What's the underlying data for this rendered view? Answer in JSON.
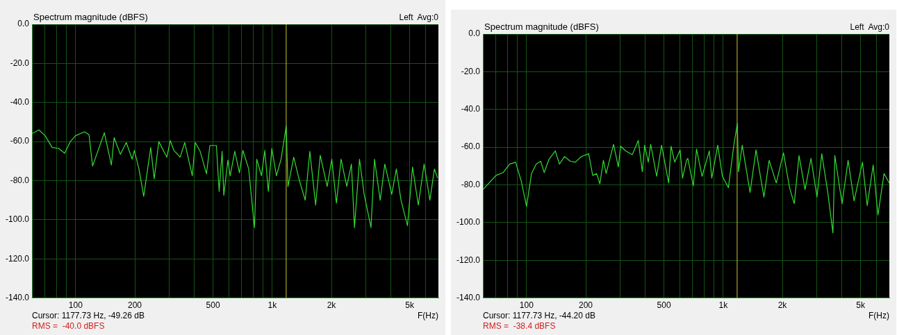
{
  "chart_data": [
    {
      "type": "line",
      "title": "Spectrum magnitude (dBFS)",
      "subtitle": "Left  Avg:0",
      "xlabel": "F(Hz)",
      "annotations": [
        "Cursor: 1177.73 Hz, -49.26 dB",
        "RMS =  -40.0 dBFS"
      ],
      "log": "x",
      "grid": true,
      "marker": "none",
      "xlim": [
        60,
        7000
      ],
      "xticks": [
        {
          "value": 70,
          "label": null
        },
        {
          "value": 80,
          "label": null
        },
        {
          "value": 90,
          "label": null
        },
        100,
        200,
        {
          "value": 300,
          "label": null
        },
        {
          "value": 400,
          "label": null
        },
        500,
        {
          "value": 600,
          "label": null
        },
        {
          "value": 700,
          "label": null
        },
        {
          "value": 800,
          "label": null
        },
        {
          "value": 900,
          "label": null
        },
        {
          "value": 1000,
          "label": "1k"
        },
        {
          "value": 2000,
          "label": "2k"
        },
        {
          "value": 3000,
          "label": null
        },
        {
          "value": 4000,
          "label": null
        },
        {
          "value": 5000,
          "label": "5k"
        },
        {
          "value": 6000,
          "label": null
        }
      ],
      "ylim": [
        -140,
        0
      ],
      "yticks": [
        {
          "value": 0,
          "label": "0.0"
        },
        {
          "value": -20,
          "label": "-20.0"
        },
        {
          "value": -40,
          "label": "-40.0"
        },
        {
          "value": -60,
          "label": "-60.0"
        },
        {
          "value": -80,
          "label": "-80.0"
        },
        {
          "value": -100,
          "label": "-100.0"
        },
        {
          "value": -120,
          "label": "-120.0"
        },
        {
          "value": -140,
          "label": "-140.0"
        }
      ],
      "ref_lines": [
        {
          "axis": "x",
          "value": 1177.73,
          "color": "#c8c832"
        }
      ],
      "series": [
        {
          "color": "#33dd33",
          "x": [
            60,
            65,
            70,
            76,
            82,
            88,
            94,
            100,
            111,
            117,
            122,
            140,
            152,
            157,
            169,
            181,
            194,
            199,
            210,
            222,
            241,
            251,
            265,
            291,
            303,
            316,
            340,
            359,
            392,
            406,
            430,
            463,
            482,
            520,
            537,
            556,
            567,
            595,
            611,
            645,
            681,
            709,
            759,
            812,
            834,
            881,
            917,
            955,
            995,
            1050,
            1109,
            1178,
            1202,
            1286,
            1375,
            1471,
            1553,
            1662,
            1754,
            1902,
            2008,
            2120,
            2238,
            2394,
            2527,
            2619,
            2778,
            2933,
            3179,
            3311,
            3540,
            3737,
            4053,
            4277,
            4516,
            4873,
            5170,
            5530,
            5920,
            6334,
            6680,
            6925
          ],
          "values": [
            -56,
            -54,
            -57,
            -63,
            -63.5,
            -66,
            -60,
            -57,
            -55,
            -56.5,
            -72.5,
            -55.5,
            -72,
            -58,
            -66.5,
            -60.5,
            -69,
            -64.5,
            -74,
            -88,
            -63,
            -79,
            -60,
            -68,
            -59.5,
            -64.5,
            -68,
            -60.5,
            -77.5,
            -60.5,
            -65,
            -76.5,
            -62,
            -62,
            -85.5,
            -65,
            -87.5,
            -69.5,
            -77.5,
            -65,
            -76,
            -64.5,
            -74,
            -104,
            -69,
            -77.5,
            -64.5,
            -85.5,
            -63.5,
            -77.5,
            -69,
            -52,
            -83,
            -68,
            -80,
            -90,
            -65,
            -92.5,
            -67,
            -83,
            -69,
            -91.5,
            -69,
            -83,
            -71.5,
            -104,
            -69,
            -87,
            -104,
            -69,
            -90,
            -71.5,
            -87,
            -74,
            -90,
            -103,
            -73,
            -92.5,
            -71.5,
            -90,
            -74,
            -78.5
          ]
        }
      ]
    },
    {
      "type": "line",
      "title": "Spectrum magnitude (dBFS)",
      "subtitle": "Left  Avg:0",
      "xlabel": "F(Hz)",
      "annotations": [
        "Cursor: 1177.73 Hz, -44.20 dB",
        "RMS =  -38.4 dBFS"
      ],
      "log": "x",
      "grid": true,
      "marker": "none",
      "xlim": [
        60,
        7000
      ],
      "xticks": [
        {
          "value": 70,
          "label": null
        },
        {
          "value": 80,
          "label": null
        },
        {
          "value": 90,
          "label": null
        },
        100,
        200,
        {
          "value": 300,
          "label": null
        },
        {
          "value": 400,
          "label": null
        },
        500,
        {
          "value": 600,
          "label": null
        },
        {
          "value": 700,
          "label": null
        },
        {
          "value": 800,
          "label": null
        },
        {
          "value": 900,
          "label": null
        },
        {
          "value": 1000,
          "label": "1k"
        },
        {
          "value": 2000,
          "label": "2k"
        },
        {
          "value": 3000,
          "label": null
        },
        {
          "value": 4000,
          "label": null
        },
        {
          "value": 5000,
          "label": "5k"
        },
        {
          "value": 6000,
          "label": null
        }
      ],
      "ylim": [
        -140,
        0
      ],
      "yticks": [
        {
          "value": 0,
          "label": "0.0"
        },
        {
          "value": -20,
          "label": "-20.0"
        },
        {
          "value": -40,
          "label": "-40.0"
        },
        {
          "value": -60,
          "label": "-60.0"
        },
        {
          "value": -80,
          "label": "-80.0"
        },
        {
          "value": -100,
          "label": "-100.0"
        },
        {
          "value": -120,
          "label": "-120.0"
        },
        {
          "value": -140,
          "label": "-140.0"
        }
      ],
      "ref_lines": [
        {
          "axis": "x",
          "value": 1177.73,
          "color": "#c8c832"
        }
      ],
      "series": [
        {
          "color": "#33dd33",
          "x": [
            60,
            70,
            76,
            82,
            88,
            94,
            100,
            106,
            112,
            118,
            123,
            130,
            140,
            147,
            156,
            167,
            177,
            190,
            207,
            217,
            227,
            236,
            246,
            254,
            277,
            293,
            301,
            319,
            345,
            370,
            388,
            399,
            416,
            428,
            459,
            486,
            528,
            543,
            567,
            604,
            621,
            651,
            661,
            705,
            732,
            781,
            850,
            875,
            938,
            991,
            1063,
            1131,
            1180,
            1197,
            1250,
            1370,
            1469,
            1611,
            1713,
            1862,
            2026,
            2175,
            2298,
            2431,
            2608,
            2797,
            3000,
            3172,
            3403,
            3616,
            3697,
            4023,
            4318,
            4632,
            5108,
            5400,
            5794,
            6124,
            6578,
            6990
          ],
          "values": [
            -82.5,
            -75,
            -73.5,
            -69,
            -68,
            -78,
            -91.5,
            -74,
            -69,
            -67.5,
            -73.5,
            -66.5,
            -62,
            -69,
            -65,
            -67.5,
            -68,
            -65,
            -63.5,
            -75,
            -74,
            -79.5,
            -67,
            -74,
            -58.5,
            -70.5,
            -59.5,
            -62,
            -64,
            -56.5,
            -73,
            -59,
            -68,
            -58.5,
            -75.5,
            -59,
            -79,
            -59.5,
            -68,
            -61.5,
            -76.5,
            -67,
            -66,
            -80.5,
            -61,
            -75.5,
            -62,
            -76.5,
            -59,
            -75.5,
            -81.5,
            -59.5,
            -47.5,
            -73,
            -59,
            -84,
            -61.5,
            -86.5,
            -67,
            -79,
            -63,
            -81.5,
            -90,
            -64.5,
            -82.5,
            -66,
            -86.5,
            -63.5,
            -84,
            -105.5,
            -64.5,
            -90,
            -67,
            -88.5,
            -68,
            -91,
            -69.5,
            -96,
            -74,
            -79
          ]
        }
      ]
    }
  ]
}
